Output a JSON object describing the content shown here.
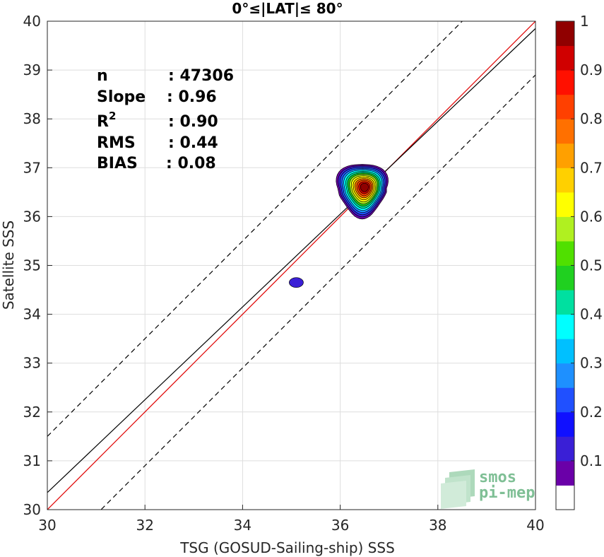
{
  "chart_data": {
    "type": "contour",
    "title": "0°≤|LAT|≤ 80°",
    "xlabel": "TSG (GOSUD-Sailing-ship) SSS",
    "ylabel": "Satellite SSS",
    "xlim": [
      30,
      40
    ],
    "ylim": [
      30,
      40
    ],
    "xticks": [
      "30",
      "32",
      "34",
      "36",
      "38",
      "40"
    ],
    "yticks": [
      "30",
      "31",
      "32",
      "33",
      "34",
      "35",
      "36",
      "37",
      "38",
      "39",
      "40"
    ],
    "grid": true,
    "stats": [
      {
        "label": "n",
        "value": ": 47306"
      },
      {
        "label": "Slope",
        "value": ": 0.96"
      },
      {
        "label": "R",
        "sup": "2",
        "value": ": 0.90"
      },
      {
        "label": "RMS",
        "value": ": 0.44"
      },
      {
        "label": "BIAS",
        "value": ": 0.08"
      }
    ],
    "lines": [
      {
        "name": "one_to_one",
        "color": "#e00000",
        "style": "solid",
        "slope": 1.0,
        "intercept": 0.0
      },
      {
        "name": "regression",
        "color": "#000000",
        "style": "solid",
        "points": [
          [
            30,
            30.35
          ],
          [
            40,
            39.85
          ]
        ]
      },
      {
        "name": "upper_bound",
        "color": "#000000",
        "style": "dashed",
        "slope": 1.0,
        "intercept": 1.5
      },
      {
        "name": "lower_bound",
        "color": "#000000",
        "style": "dashed",
        "slope": 1.0,
        "intercept": -1.1
      }
    ],
    "density_peak": {
      "x": 36.5,
      "y": 36.6
    },
    "secondary_blob": {
      "x": 35.1,
      "y": 34.65
    },
    "colorbar": {
      "min": 0,
      "max": 1,
      "ticks": [
        "0.1",
        "0.2",
        "0.3",
        "0.4",
        "0.5",
        "0.6",
        "0.7",
        "0.8",
        "0.9",
        "1"
      ],
      "colors": [
        "#ffffff",
        "#6a00a8",
        "#3a1fd6",
        "#1010ff",
        "#2050ff",
        "#1e90ff",
        "#00c0ff",
        "#00ffff",
        "#00e0a0",
        "#20d020",
        "#50e000",
        "#b0f020",
        "#ffff00",
        "#ffd000",
        "#ffa000",
        "#ff7000",
        "#ff4000",
        "#ff1000",
        "#d00000",
        "#900000"
      ]
    },
    "logo": {
      "line1": "smos",
      "line2": "pi-mep"
    }
  }
}
